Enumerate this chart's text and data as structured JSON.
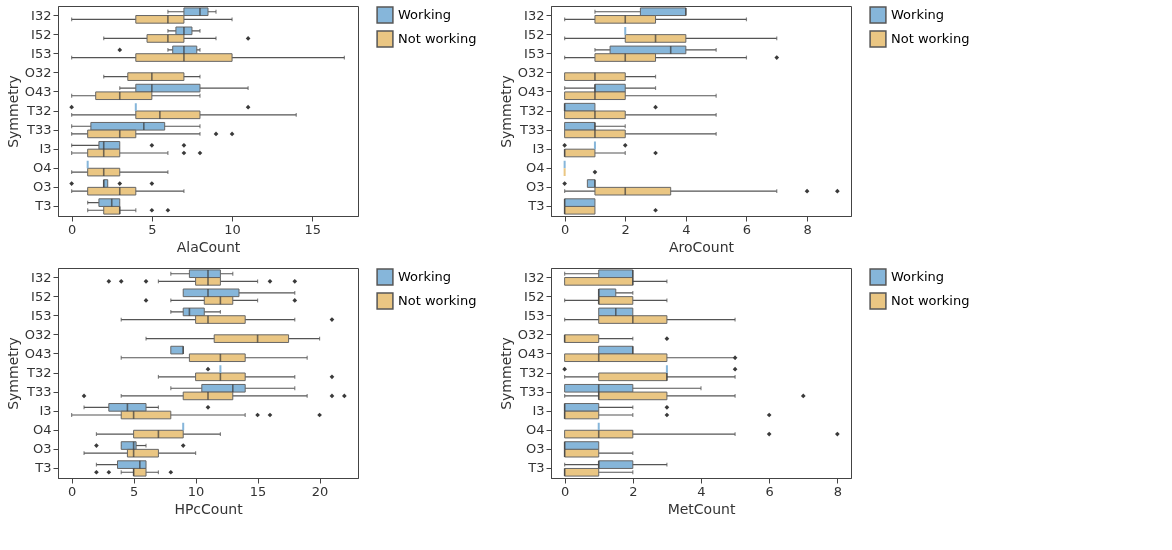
{
  "chart_data": [
    {
      "type": "box",
      "orientation": "horizontal",
      "xlabel": "AlaCount",
      "ylabel": "Symmetry",
      "xlim": [
        -0.85,
        17.85
      ],
      "xticks": [
        0,
        5,
        10,
        15
      ],
      "legend": "right",
      "grid": false,
      "categories": [
        "I32",
        "I52",
        "I53",
        "O32",
        "O43",
        "T32",
        "T33",
        "I3",
        "O4",
        "O3",
        "T3"
      ],
      "series": [
        {
          "name": "Working",
          "color": "#86b6da",
          "boxes": [
            {
              "low": 6,
              "q1": 7,
              "median": 8,
              "q3": 8.5,
              "high": 9
            },
            {
              "low": 6,
              "q1": 6.5,
              "median": 7,
              "q3": 7.5,
              "high": 8
            },
            {
              "low": 6,
              "q1": 6.3,
              "median": 7,
              "q3": 7.8,
              "high": 8,
              "outliers": [
                3
              ]
            },
            null,
            {
              "low": 3,
              "q1": 4,
              "median": 5,
              "q3": 8,
              "high": 11
            },
            {
              "low": 4,
              "q1": 4,
              "median": 4,
              "q3": 4,
              "high": 4,
              "outliers": [
                0,
                11
              ]
            },
            {
              "low": 0,
              "q1": 1.2,
              "median": 4.5,
              "q3": 5.8,
              "high": 8
            },
            {
              "low": 0,
              "q1": 1.7,
              "median": 2,
              "q3": 3,
              "high": 3,
              "outliers": [
                5,
                7
              ]
            },
            {
              "low": 1,
              "q1": 1,
              "median": 1,
              "q3": 1,
              "high": 1
            },
            {
              "low": 2,
              "q1": 2,
              "median": 2,
              "q3": 2.25,
              "high": 2.25,
              "outliers": [
                0,
                3,
                5
              ]
            },
            {
              "low": 1,
              "q1": 1.7,
              "median": 2.5,
              "q3": 3,
              "high": 3
            }
          ]
        },
        {
          "name": "Not working",
          "color": "#eac683",
          "boxes": [
            {
              "low": 0,
              "q1": 4,
              "median": 6,
              "q3": 7,
              "high": 10
            },
            {
              "low": 2,
              "q1": 4.7,
              "median": 6,
              "q3": 7,
              "high": 9,
              "outliers": [
                11
              ]
            },
            {
              "low": 0,
              "q1": 4,
              "median": 7,
              "q3": 10,
              "high": 17
            },
            {
              "low": 2,
              "q1": 3.5,
              "median": 5,
              "q3": 7,
              "high": 8
            },
            {
              "low": 0,
              "q1": 1.5,
              "median": 3,
              "q3": 5,
              "high": 8
            },
            {
              "low": 0,
              "q1": 4,
              "median": 5.5,
              "q3": 8,
              "high": 14
            },
            {
              "low": 0,
              "q1": 1,
              "median": 3,
              "q3": 4,
              "high": 8,
              "outliers": [
                9,
                10
              ]
            },
            {
              "low": 0,
              "q1": 1,
              "median": 2,
              "q3": 3,
              "high": 6,
              "outliers": [
                7,
                8
              ]
            },
            {
              "low": 0,
              "q1": 1,
              "median": 2,
              "q3": 3,
              "high": 6
            },
            {
              "low": 0,
              "q1": 1,
              "median": 3,
              "q3": 4,
              "high": 7
            },
            {
              "low": 1,
              "q1": 2,
              "median": 3,
              "q3": 3,
              "high": 4,
              "outliers": [
                5,
                6
              ]
            }
          ]
        }
      ]
    },
    {
      "type": "box",
      "orientation": "horizontal",
      "xlabel": "AroCount",
      "ylabel": "Symmetry",
      "xlim": [
        -0.45,
        9.45
      ],
      "xticks": [
        0,
        2,
        4,
        6,
        8
      ],
      "legend": "right",
      "grid": false,
      "categories": [
        "I32",
        "I52",
        "I53",
        "O32",
        "O43",
        "T32",
        "T33",
        "I3",
        "O4",
        "O3",
        "T3"
      ],
      "series": [
        {
          "name": "Working",
          "color": "#86b6da",
          "boxes": [
            {
              "low": 1,
              "q1": 2.5,
              "median": 4,
              "q3": 4,
              "high": 4
            },
            {
              "low": 2,
              "q1": 2,
              "median": 2,
              "q3": 2,
              "high": 2
            },
            {
              "low": 1,
              "q1": 1.5,
              "median": 3.5,
              "q3": 4,
              "high": 5
            },
            null,
            {
              "low": 0,
              "q1": 1,
              "median": 1,
              "q3": 2,
              "high": 3
            },
            {
              "low": 0,
              "q1": 0,
              "median": 0,
              "q3": 1,
              "high": 1,
              "outliers": [
                3
              ]
            },
            {
              "low": 0,
              "q1": 0,
              "median": 1,
              "q3": 1,
              "high": 2
            },
            {
              "low": 1,
              "q1": 1,
              "median": 1,
              "q3": 1,
              "high": 1,
              "outliers": [
                0,
                2
              ]
            },
            {
              "low": 0,
              "q1": 0,
              "median": 0,
              "q3": 0,
              "high": 0
            },
            {
              "low": 0.75,
              "q1": 0.75,
              "median": 1,
              "q3": 1,
              "high": 1,
              "outliers": [
                0
              ]
            },
            {
              "low": 0,
              "q1": 0,
              "median": 0,
              "q3": 1,
              "high": 1
            }
          ]
        },
        {
          "name": "Not working",
          "color": "#eac683",
          "boxes": [
            {
              "low": 0,
              "q1": 1,
              "median": 2,
              "q3": 3,
              "high": 6
            },
            {
              "low": 0,
              "q1": 2,
              "median": 3,
              "q3": 4,
              "high": 7
            },
            {
              "low": 0,
              "q1": 1,
              "median": 2,
              "q3": 3,
              "high": 6,
              "outliers": [
                7
              ]
            },
            {
              "low": 0,
              "q1": 0,
              "median": 1,
              "q3": 2,
              "high": 3
            },
            {
              "low": 0,
              "q1": 0,
              "median": 1,
              "q3": 2,
              "high": 5
            },
            {
              "low": 0,
              "q1": 0,
              "median": 1,
              "q3": 2,
              "high": 5
            },
            {
              "low": 0,
              "q1": 0,
              "median": 1,
              "q3": 2,
              "high": 5
            },
            {
              "low": 0,
              "q1": 0,
              "median": 0,
              "q3": 1,
              "high": 2,
              "outliers": [
                3
              ]
            },
            {
              "low": 0,
              "q1": 0,
              "median": 0,
              "q3": 0,
              "high": 0,
              "outliers": [
                1
              ]
            },
            {
              "low": 0,
              "q1": 1,
              "median": 2,
              "q3": 3.5,
              "high": 7,
              "outliers": [
                8,
                9
              ]
            },
            {
              "low": 0,
              "q1": 0,
              "median": 0,
              "q3": 1,
              "high": 1,
              "outliers": [
                3
              ]
            }
          ]
        }
      ]
    },
    {
      "type": "box",
      "orientation": "horizontal",
      "xlabel": "HPcCount",
      "ylabel": "Symmetry",
      "xlim": [
        -1.1,
        23.1
      ],
      "xticks": [
        0,
        5,
        10,
        15,
        20
      ],
      "legend": "right",
      "grid": false,
      "categories": [
        "I32",
        "I52",
        "I53",
        "O32",
        "O43",
        "T32",
        "T33",
        "I3",
        "O4",
        "O3",
        "T3"
      ],
      "series": [
        {
          "name": "Working",
          "color": "#86b6da",
          "boxes": [
            {
              "low": 8,
              "q1": 9.5,
              "median": 11,
              "q3": 12,
              "high": 13
            },
            {
              "low": 9,
              "q1": 9,
              "median": 11,
              "q3": 13.5,
              "high": 18
            },
            {
              "low": 8,
              "q1": 9,
              "median": 9.5,
              "q3": 10.7,
              "high": 12
            },
            null,
            {
              "low": 8,
              "q1": 8,
              "median": 9,
              "q3": 9,
              "high": 9
            },
            {
              "low": 12,
              "q1": 12,
              "median": 12,
              "q3": 12,
              "high": 12,
              "outliers": [
                11
              ]
            },
            {
              "low": 8,
              "q1": 10.5,
              "median": 13,
              "q3": 14,
              "high": 18
            },
            {
              "low": 1,
              "q1": 3,
              "median": 4.5,
              "q3": 6,
              "high": 7,
              "outliers": [
                11
              ]
            },
            {
              "low": 9,
              "q1": 9,
              "median": 9,
              "q3": 9,
              "high": 9
            },
            {
              "low": 4,
              "q1": 4,
              "median": 5,
              "q3": 5.2,
              "high": 6,
              "outliers": [
                2,
                9
              ]
            },
            {
              "low": 2,
              "q1": 3.7,
              "median": 5.5,
              "q3": 6,
              "high": 6
            }
          ]
        },
        {
          "name": "Not working",
          "color": "#eac683",
          "boxes": [
            {
              "low": 7,
              "q1": 10,
              "median": 11,
              "q3": 12,
              "high": 15,
              "outliers": [
                3,
                4,
                6,
                16,
                18
              ]
            },
            {
              "low": 8,
              "q1": 10.7,
              "median": 12,
              "q3": 13,
              "high": 15,
              "outliers": [
                6,
                18
              ]
            },
            {
              "low": 4,
              "q1": 10,
              "median": 11,
              "q3": 14,
              "high": 18,
              "outliers": [
                21
              ]
            },
            {
              "low": 6,
              "q1": 11.5,
              "median": 15,
              "q3": 17.5,
              "high": 20
            },
            {
              "low": 4,
              "q1": 9.5,
              "median": 12,
              "q3": 14,
              "high": 19
            },
            {
              "low": 7,
              "q1": 10,
              "median": 12,
              "q3": 14,
              "high": 18,
              "outliers": [
                21
              ]
            },
            {
              "low": 4,
              "q1": 9,
              "median": 11,
              "q3": 13,
              "high": 19,
              "outliers": [
                1,
                21,
                22
              ]
            },
            {
              "low": 0,
              "q1": 4,
              "median": 5,
              "q3": 8,
              "high": 14,
              "outliers": [
                15,
                16,
                20
              ]
            },
            {
              "low": 2,
              "q1": 5,
              "median": 7,
              "q3": 9,
              "high": 12
            },
            {
              "low": 1,
              "q1": 4.5,
              "median": 5,
              "q3": 7,
              "high": 10
            },
            {
              "low": 4,
              "q1": 5,
              "median": 5,
              "q3": 6,
              "high": 7,
              "outliers": [
                2,
                3,
                8
              ]
            }
          ]
        }
      ]
    },
    {
      "type": "box",
      "orientation": "horizontal",
      "xlabel": "MetCount",
      "ylabel": "Symmetry",
      "xlim": [
        -0.4,
        8.4
      ],
      "xticks": [
        0,
        2,
        4,
        6,
        8
      ],
      "legend": "right",
      "grid": false,
      "categories": [
        "I32",
        "I52",
        "I53",
        "O32",
        "O43",
        "T32",
        "T33",
        "I3",
        "O4",
        "O3",
        "T3"
      ],
      "series": [
        {
          "name": "Working",
          "color": "#86b6da",
          "boxes": [
            {
              "low": 0,
              "q1": 1,
              "median": 2,
              "q3": 2,
              "high": 2
            },
            {
              "low": 1,
              "q1": 1,
              "median": 1,
              "q3": 1.5,
              "high": 2
            },
            {
              "low": 1,
              "q1": 1,
              "median": 1.5,
              "q3": 2,
              "high": 2
            },
            null,
            {
              "low": 1,
              "q1": 1,
              "median": 2,
              "q3": 2,
              "high": 2
            },
            {
              "low": 3,
              "q1": 3,
              "median": 3,
              "q3": 3,
              "high": 3,
              "outliers": [
                0,
                5
              ]
            },
            {
              "low": 0,
              "q1": 0,
              "median": 1,
              "q3": 2,
              "high": 4
            },
            {
              "low": 0,
              "q1": 0,
              "median": 0,
              "q3": 1,
              "high": 2,
              "outliers": [
                3
              ]
            },
            {
              "low": 1,
              "q1": 1,
              "median": 1,
              "q3": 1,
              "high": 1
            },
            {
              "low": 0,
              "q1": 0,
              "median": 0,
              "q3": 1,
              "high": 1
            },
            {
              "low": 0,
              "q1": 1,
              "median": 1,
              "q3": 2,
              "high": 3
            }
          ]
        },
        {
          "name": "Not working",
          "color": "#eac683",
          "boxes": [
            {
              "low": 0,
              "q1": 0,
              "median": 2,
              "q3": 2,
              "high": 3
            },
            {
              "low": 0,
              "q1": 1,
              "median": 1,
              "q3": 2,
              "high": 3
            },
            {
              "low": 0,
              "q1": 1,
              "median": 2,
              "q3": 3,
              "high": 5
            },
            {
              "low": 0,
              "q1": 0,
              "median": 0,
              "q3": 1,
              "high": 2,
              "outliers": [
                3
              ]
            },
            {
              "low": 0,
              "q1": 0,
              "median": 1,
              "q3": 3,
              "high": 5,
              "outliers": [
                5
              ]
            },
            {
              "low": 0,
              "q1": 1,
              "median": 3,
              "q3": 3,
              "high": 5
            },
            {
              "low": 0,
              "q1": 1,
              "median": 1,
              "q3": 3,
              "high": 5,
              "outliers": [
                7
              ]
            },
            {
              "low": 0,
              "q1": 0,
              "median": 0,
              "q3": 1,
              "high": 2,
              "outliers": [
                3,
                6
              ]
            },
            {
              "low": 0,
              "q1": 0,
              "median": 1,
              "q3": 2,
              "high": 5,
              "outliers": [
                6,
                8
              ]
            },
            {
              "low": 0,
              "q1": 0,
              "median": 0,
              "q3": 1,
              "high": 2
            },
            {
              "low": 0,
              "q1": 0,
              "median": 0,
              "q3": 1,
              "high": 2
            }
          ]
        }
      ]
    }
  ]
}
